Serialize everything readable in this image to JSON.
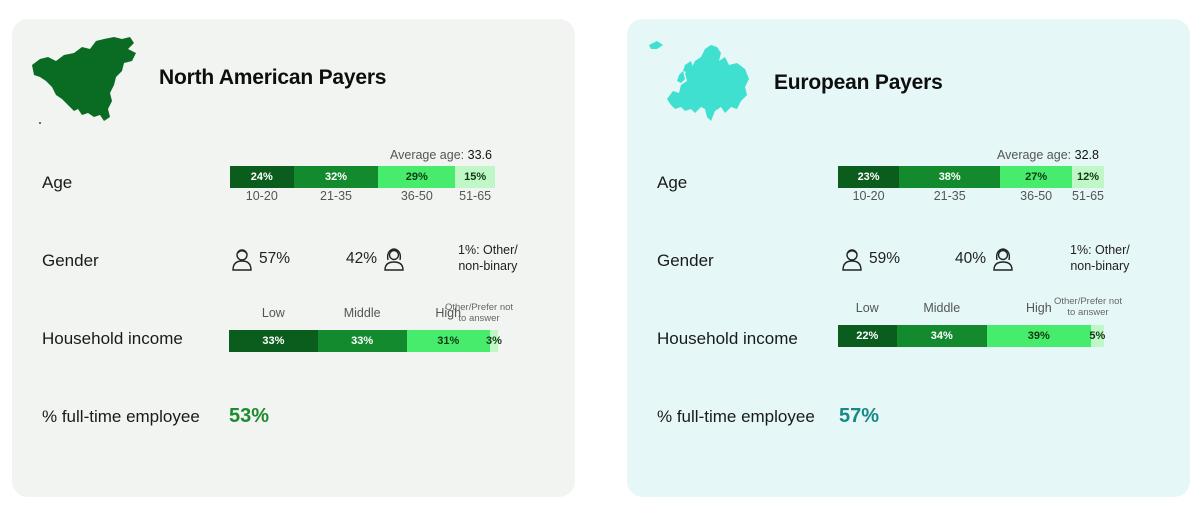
{
  "colors": {
    "seg": [
      "#0b5d1e",
      "#148a2f",
      "#47ec6c",
      "#bff7c6"
    ],
    "na_map": "#0a6b22",
    "eu_map": "#3fe0cf",
    "na_ft": "#1e8a2e",
    "eu_ft": "#168a86"
  },
  "icons": {
    "male": "person-icon",
    "female": "person-long-hair-icon"
  },
  "cards": [
    {
      "title": "North American Payers",
      "labels": {
        "age": "Age",
        "gender": "Gender",
        "income": "Household income",
        "fulltime": "% full-time employee"
      },
      "avg_prefix": "Average age:",
      "avg_value": "33.6",
      "gender": {
        "male": "57%",
        "female": "42%",
        "other_line1": "1%: Other/",
        "other_line2": "non-binary"
      },
      "income_categories": [
        "Low",
        "Middle",
        "High"
      ],
      "income_other_line1": "Other/Prefer not",
      "income_other_line2": "to answer",
      "fulltime_value": "53%"
    },
    {
      "title": "European Payers",
      "labels": {
        "age": "Age",
        "gender": "Gender",
        "income": "Household income",
        "fulltime": "% full-time employee"
      },
      "avg_prefix": "Average age:",
      "avg_value": "32.8",
      "gender": {
        "male": "59%",
        "female": "40%",
        "other_line1": "1%: Other/",
        "other_line2": "non-binary"
      },
      "income_categories": [
        "Low",
        "Middle",
        "High"
      ],
      "income_other_line1": "Other/Prefer not",
      "income_other_line2": "to answer",
      "fulltime_value": "57%"
    }
  ],
  "chart_data": [
    {
      "type": "bar",
      "title": "North American Payers – Age",
      "categories": [
        "10-20",
        "21-35",
        "36-50",
        "51-65"
      ],
      "values": [
        24,
        32,
        29,
        15
      ],
      "labels": [
        "24%",
        "32%",
        "29%",
        "15%"
      ],
      "average_age": 33.6
    },
    {
      "type": "bar",
      "title": "North American Payers – Household income",
      "categories": [
        "Low",
        "Middle",
        "High",
        "Other/Prefer not to answer"
      ],
      "values": [
        33,
        33,
        31,
        3
      ],
      "labels": [
        "33%",
        "33%",
        "31%",
        "3%"
      ]
    },
    {
      "type": "bar",
      "title": "European Payers – Age",
      "categories": [
        "10-20",
        "21-35",
        "36-50",
        "51-65"
      ],
      "values": [
        23,
        38,
        27,
        12
      ],
      "labels": [
        "23%",
        "38%",
        "27%",
        "12%"
      ],
      "average_age": 32.8
    },
    {
      "type": "bar",
      "title": "European Payers – Household income",
      "categories": [
        "Low",
        "Middle",
        "High",
        "Other/Prefer not to answer"
      ],
      "values": [
        22,
        34,
        39,
        5
      ],
      "labels": [
        "22%",
        "34%",
        "39%",
        "5%"
      ]
    }
  ]
}
